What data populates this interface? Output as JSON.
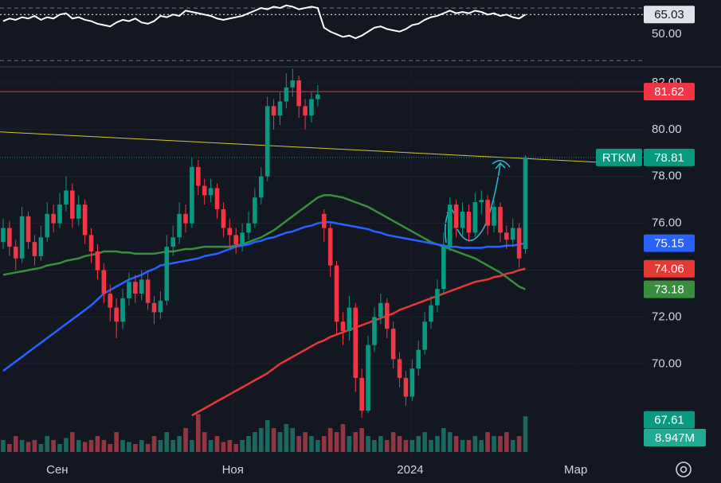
{
  "chart_data": {
    "type": "candlestick",
    "symbol": "RTKM",
    "up_color": "#089981",
    "down_color": "#f23645",
    "xlim": [
      -0.5,
      101.8
    ],
    "xticks": [
      {
        "value": 8.6,
        "label": "Сен"
      },
      {
        "value": 36.5,
        "label": "Ноя"
      },
      {
        "value": 64.7,
        "label": "2024"
      },
      {
        "value": 91.0,
        "label": "Мар"
      }
    ],
    "ylim": [
      65.9,
      82.61
    ],
    "yticks": [
      {
        "value": 70,
        "label": "70.00"
      },
      {
        "value": 72,
        "label": "72.00"
      },
      {
        "value": 74,
        "label": "74.00"
      },
      {
        "value": 76,
        "label": "76.00"
      },
      {
        "value": 78,
        "label": "78.00"
      },
      {
        "value": 80,
        "label": "80.00"
      },
      {
        "value": 82,
        "label": "82.00"
      }
    ],
    "open": [
      75.2,
      75.8,
      75.0,
      74.5,
      76.3,
      75.2,
      74.6,
      75.4,
      76.4,
      76.0,
      76.8,
      77.4,
      76.2,
      76.8,
      75.5,
      74.8,
      74.0,
      73.0,
      72.4,
      71.8,
      72.8,
      73.5,
      73.0,
      73.6,
      72.6,
      72.2,
      72.7,
      75.0,
      75.4,
      76.4,
      76.0,
      78.4,
      77.6,
      77.2,
      77.5,
      76.6,
      75.8,
      75.5,
      75.1,
      75.6,
      76.0,
      77.1,
      78.0,
      81.0,
      80.6,
      81.2,
      81.8,
      82.1,
      81.0,
      80.6,
      81.3,
      76.4,
      75.8,
      74.2,
      71.8,
      71.4,
      72.4,
      69.4,
      68.0,
      70.8,
      72.0,
      72.6,
      71.5,
      70.2,
      69.4,
      68.6,
      69.8,
      70.6,
      71.8,
      72.5,
      73.2,
      75.0,
      76.8,
      75.8,
      76.5,
      75.6,
      76.9,
      77.0,
      75.9,
      76.7,
      75.6,
      75.3,
      75.8,
      74.9
    ],
    "high": [
      76.2,
      76.1,
      75.3,
      76.7,
      76.5,
      75.5,
      75.9,
      76.9,
      76.8,
      77.3,
      78.0,
      77.7,
      77.2,
      77.0,
      75.8,
      75.1,
      74.3,
      73.4,
      72.8,
      73.2,
      73.9,
      73.8,
      74.0,
      73.9,
      72.9,
      73.1,
      75.5,
      75.9,
      76.9,
      76.8,
      78.8,
      78.7,
      77.9,
      77.9,
      77.7,
      76.9,
      76.2,
      75.8,
      76.0,
      76.5,
      77.5,
      78.4,
      81.4,
      81.3,
      81.6,
      82.4,
      82.6,
      82.3,
      81.3,
      81.6,
      81.9,
      76.6,
      76.0,
      74.4,
      72.2,
      72.9,
      72.6,
      69.8,
      71.2,
      72.4,
      73.0,
      72.8,
      71.8,
      70.5,
      69.7,
      70.2,
      71.0,
      72.2,
      72.9,
      73.6,
      75.6,
      77.1,
      77.0,
      76.9,
      76.8,
      77.3,
      77.4,
      77.2,
      77.0,
      76.9,
      75.9,
      76.2,
      76.0,
      78.9
    ],
    "low": [
      74.9,
      74.6,
      74.0,
      74.3,
      74.9,
      74.2,
      74.4,
      75.2,
      75.6,
      75.8,
      76.5,
      75.8,
      75.9,
      75.1,
      74.3,
      73.6,
      72.6,
      71.8,
      71.1,
      71.5,
      72.5,
      72.6,
      72.7,
      72.3,
      71.7,
      71.9,
      72.5,
      74.6,
      75.1,
      75.6,
      75.8,
      77.2,
      76.8,
      76.9,
      76.2,
      75.4,
      75.0,
      74.7,
      74.8,
      75.3,
      75.8,
      76.8,
      77.8,
      80.0,
      80.2,
      80.9,
      81.4,
      80.5,
      80.0,
      80.3,
      81.0,
      75.2,
      73.7,
      71.2,
      70.8,
      71.0,
      68.8,
      67.7,
      67.9,
      70.5,
      71.7,
      71.1,
      69.8,
      69.0,
      68.2,
      68.4,
      69.5,
      70.4,
      71.5,
      72.2,
      73.0,
      74.8,
      75.4,
      75.5,
      75.2,
      75.4,
      76.4,
      75.5,
      75.6,
      75.2,
      74.9,
      75.0,
      74.1,
      74.7
    ],
    "close": [
      75.8,
      75.0,
      74.5,
      76.3,
      75.2,
      74.6,
      75.4,
      76.4,
      76.0,
      76.8,
      77.4,
      76.2,
      76.8,
      75.5,
      74.8,
      74.0,
      73.0,
      72.4,
      71.8,
      72.8,
      73.5,
      73.0,
      73.6,
      72.6,
      72.2,
      72.7,
      75.0,
      75.4,
      76.4,
      76.0,
      78.4,
      77.6,
      77.2,
      77.5,
      76.6,
      75.8,
      75.5,
      75.1,
      75.6,
      76.0,
      77.1,
      78.0,
      81.0,
      80.6,
      81.2,
      81.8,
      82.1,
      81.0,
      80.6,
      81.3,
      81.5,
      75.8,
      74.2,
      71.8,
      71.4,
      72.4,
      69.4,
      68.0,
      70.8,
      72.0,
      72.6,
      71.5,
      70.2,
      69.4,
      68.6,
      69.8,
      70.6,
      71.8,
      72.5,
      73.2,
      75.0,
      76.8,
      75.8,
      76.5,
      75.6,
      76.9,
      77.0,
      75.9,
      76.7,
      75.6,
      75.3,
      75.8,
      74.5,
      78.81
    ],
    "series": [
      {
        "color": "#388e3c",
        "values": [
          73.8,
          73.85,
          73.9,
          73.95,
          74.0,
          74.05,
          74.1,
          74.2,
          74.25,
          74.3,
          74.4,
          74.45,
          74.5,
          74.6,
          74.65,
          74.7,
          74.8,
          74.8,
          74.8,
          74.75,
          74.75,
          74.7,
          74.7,
          74.7,
          74.7,
          74.75,
          74.8,
          74.8,
          74.85,
          74.9,
          74.9,
          74.95,
          75.0,
          75.0,
          75.0,
          75.0,
          75.0,
          75.05,
          75.1,
          75.2,
          75.3,
          75.4,
          75.55,
          75.7,
          75.9,
          76.1,
          76.3,
          76.5,
          76.7,
          76.9,
          77.1,
          77.2,
          77.2,
          77.15,
          77.1,
          77.0,
          76.9,
          76.8,
          76.7,
          76.55,
          76.4,
          76.25,
          76.1,
          75.95,
          75.8,
          75.65,
          75.5,
          75.35,
          75.2,
          75.1,
          75.0,
          74.9,
          74.8,
          74.7,
          74.6,
          74.5,
          74.35,
          74.2,
          74.05,
          73.9,
          73.7,
          73.5,
          73.3,
          73.18
        ]
      },
      {
        "color": "#2962ff",
        "values": [
          69.7,
          69.9,
          70.1,
          70.3,
          70.5,
          70.7,
          70.9,
          71.1,
          71.3,
          71.5,
          71.7,
          71.9,
          72.1,
          72.3,
          72.5,
          72.75,
          73.0,
          73.15,
          73.3,
          73.45,
          73.6,
          73.7,
          73.8,
          73.95,
          74.05,
          74.2,
          74.25,
          74.3,
          74.35,
          74.4,
          74.45,
          74.5,
          74.6,
          74.65,
          74.7,
          74.8,
          74.9,
          75.0,
          75.05,
          75.1,
          75.2,
          75.25,
          75.35,
          75.4,
          75.5,
          75.6,
          75.65,
          75.75,
          75.85,
          75.9,
          76.0,
          76.05,
          76.05,
          76.0,
          75.95,
          75.9,
          75.85,
          75.8,
          75.75,
          75.65,
          75.6,
          75.5,
          75.45,
          75.4,
          75.35,
          75.3,
          75.25,
          75.2,
          75.15,
          75.1,
          75.05,
          75.0,
          75.0,
          74.95,
          74.95,
          74.95,
          74.95,
          75.0,
          75.0,
          75.0,
          75.05,
          75.05,
          75.1,
          75.15
        ]
      },
      {
        "color": "#e53935",
        "values": [
          null,
          null,
          null,
          null,
          null,
          null,
          null,
          null,
          null,
          null,
          null,
          null,
          null,
          null,
          null,
          null,
          null,
          null,
          null,
          null,
          null,
          null,
          null,
          null,
          null,
          null,
          null,
          null,
          null,
          null,
          67.8,
          67.95,
          68.1,
          68.25,
          68.4,
          68.55,
          68.7,
          68.85,
          69.0,
          69.15,
          69.3,
          69.45,
          69.6,
          69.8,
          70.0,
          70.15,
          70.3,
          70.45,
          70.6,
          70.75,
          70.9,
          71.0,
          71.15,
          71.25,
          71.35,
          71.45,
          71.55,
          71.65,
          71.75,
          71.85,
          71.95,
          72.05,
          72.15,
          72.3,
          72.4,
          72.5,
          72.6,
          72.7,
          72.8,
          72.9,
          73.0,
          73.1,
          73.2,
          73.3,
          73.4,
          73.5,
          73.55,
          73.6,
          73.7,
          73.75,
          73.85,
          73.9,
          74.0,
          74.06
        ]
      }
    ],
    "hline": {
      "value": 81.62,
      "color": "#f23645"
    },
    "trendline": {
      "x": [
        -0.5,
        94.2
      ],
      "values": [
        79.9,
        78.61
      ],
      "color": "#d4c533"
    },
    "extra_label": {
      "value": 67.61,
      "color": "#089981"
    },
    "volume": {
      "vlim": [
        0,
        10
      ],
      "values": [
        3,
        2,
        4,
        3,
        2.5,
        3,
        2,
        4,
        3,
        2,
        3.5,
        5,
        3,
        2.5,
        3,
        4,
        3,
        2,
        5,
        3,
        2.5,
        2,
        3,
        2,
        4,
        3,
        5,
        3,
        4,
        6,
        3,
        9.5,
        5,
        3,
        4,
        2.5,
        3,
        2,
        3,
        4,
        5,
        6,
        8,
        6,
        5,
        7,
        6,
        4,
        5,
        4,
        3,
        4,
        6,
        5,
        7,
        4,
        5,
        6,
        4,
        3,
        4,
        3,
        5,
        4,
        3,
        3,
        4,
        5,
        3,
        4,
        6,
        5,
        4,
        3,
        3,
        4,
        3,
        5,
        4,
        4,
        5,
        3,
        4,
        8.947
      ],
      "last_value_label": "8.947M",
      "label_color": "#22ab94"
    },
    "rsi": {
      "color": "#ffffff",
      "ylim": [
        25.8,
        76.1
      ],
      "yticks": [
        {
          "value": 50,
          "label": "50.00"
        }
      ],
      "levels": [
        70,
        30
      ],
      "values": [
        60,
        62,
        61,
        63,
        62,
        64,
        61,
        63,
        62,
        65,
        66,
        62,
        63,
        61,
        60,
        58,
        57,
        56,
        59,
        61,
        60,
        62,
        59,
        58,
        60,
        64,
        63,
        65,
        64,
        68,
        67,
        66,
        65,
        64,
        62,
        61,
        62,
        63,
        64,
        66,
        68,
        70,
        69,
        71,
        70,
        72,
        71,
        69,
        70,
        71,
        70,
        55,
        52,
        50,
        48,
        49,
        47,
        49,
        52,
        55,
        56,
        54,
        53,
        52,
        54,
        57,
        58,
        61,
        63,
        64,
        66,
        68,
        66,
        67,
        66,
        68,
        67,
        65,
        66,
        64,
        65,
        63,
        62,
        65.03
      ]
    }
  }
}
